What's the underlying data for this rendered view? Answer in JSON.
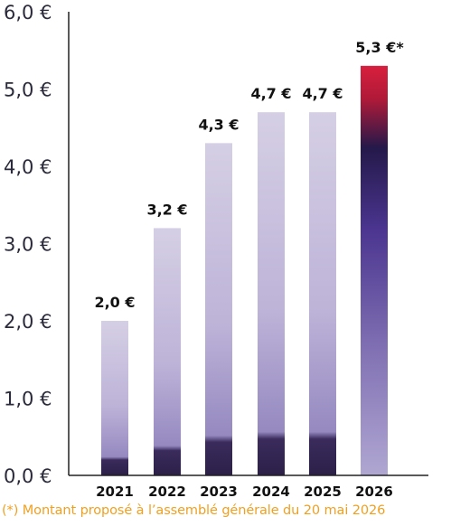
{
  "chart_data": {
    "type": "bar",
    "categories": [
      "2021",
      "2022",
      "2023",
      "2024",
      "2025",
      "2026"
    ],
    "values": [
      2.0,
      3.2,
      4.3,
      4.7,
      4.7,
      5.3
    ],
    "data_labels": [
      "2,0 €",
      "3,2 €",
      "4,3 €",
      "4,7 €",
      "4,7 €",
      "5,3 €*"
    ],
    "y_ticks": [
      "0,0 €",
      "1,0 €",
      "2,0 €",
      "3,0 €",
      "4,0 €",
      "5,0 €",
      "6,0 €"
    ],
    "ylim": [
      0,
      6
    ],
    "grid": false,
    "footnote": "(*) Montant proposé à l’assemblé générale du 20 mai 2026",
    "colors": {
      "bar_light": "#cfc8e0",
      "bar_mid": "#9a8fc4",
      "bar_dark": "#2f2350",
      "highlight_top": "#d21f3c",
      "highlight_mid": "#24194a",
      "highlight_low": "#a59bcb",
      "axis": "#222222",
      "footnote": "#f0a020"
    }
  }
}
